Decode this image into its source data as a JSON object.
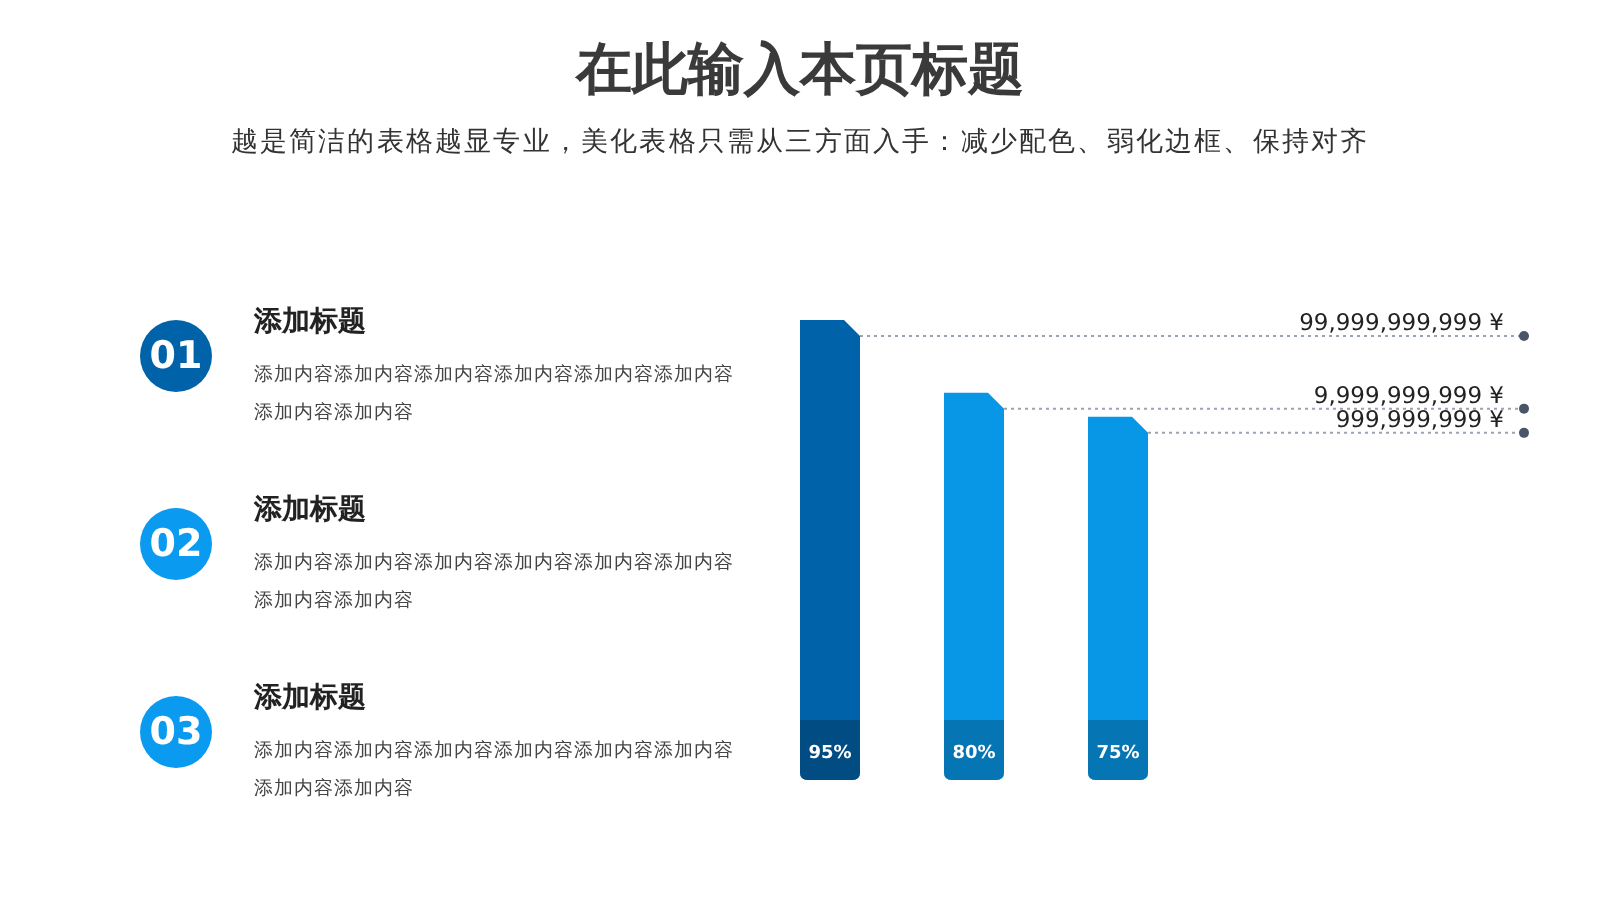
{
  "chart_data": {
    "type": "bar",
    "title": "在此输入本页标题",
    "subtitle": "越是简洁的表格越显专业，美化表格只需从三方面入手：减少配色、弱化边框、保持对齐",
    "categories": [
      null,
      null,
      null
    ],
    "values": [
      95,
      80,
      75
    ],
    "value_labels": [
      "95%",
      "80%",
      "75%"
    ],
    "colors": [
      "#0062a8",
      "#0896e6",
      "#0896e6"
    ],
    "annotations": [
      "99,999,999,999 ¥",
      "9,999,999,999 ¥",
      "999,999,999 ¥",
      "01",
      "添加标题",
      "添加内容添加内容添加内容添加内容添加内容添加内容添加内容添加内容",
      "02",
      "添加标题",
      "添加内容添加内容添加内容添加内容添加内容添加内容添加内容添加内容",
      "03",
      "添加标题",
      "添加内容添加内容添加内容添加内容添加内容添加内容添加内容添加内容"
    ],
    "legend": false,
    "grid": false
  }
}
